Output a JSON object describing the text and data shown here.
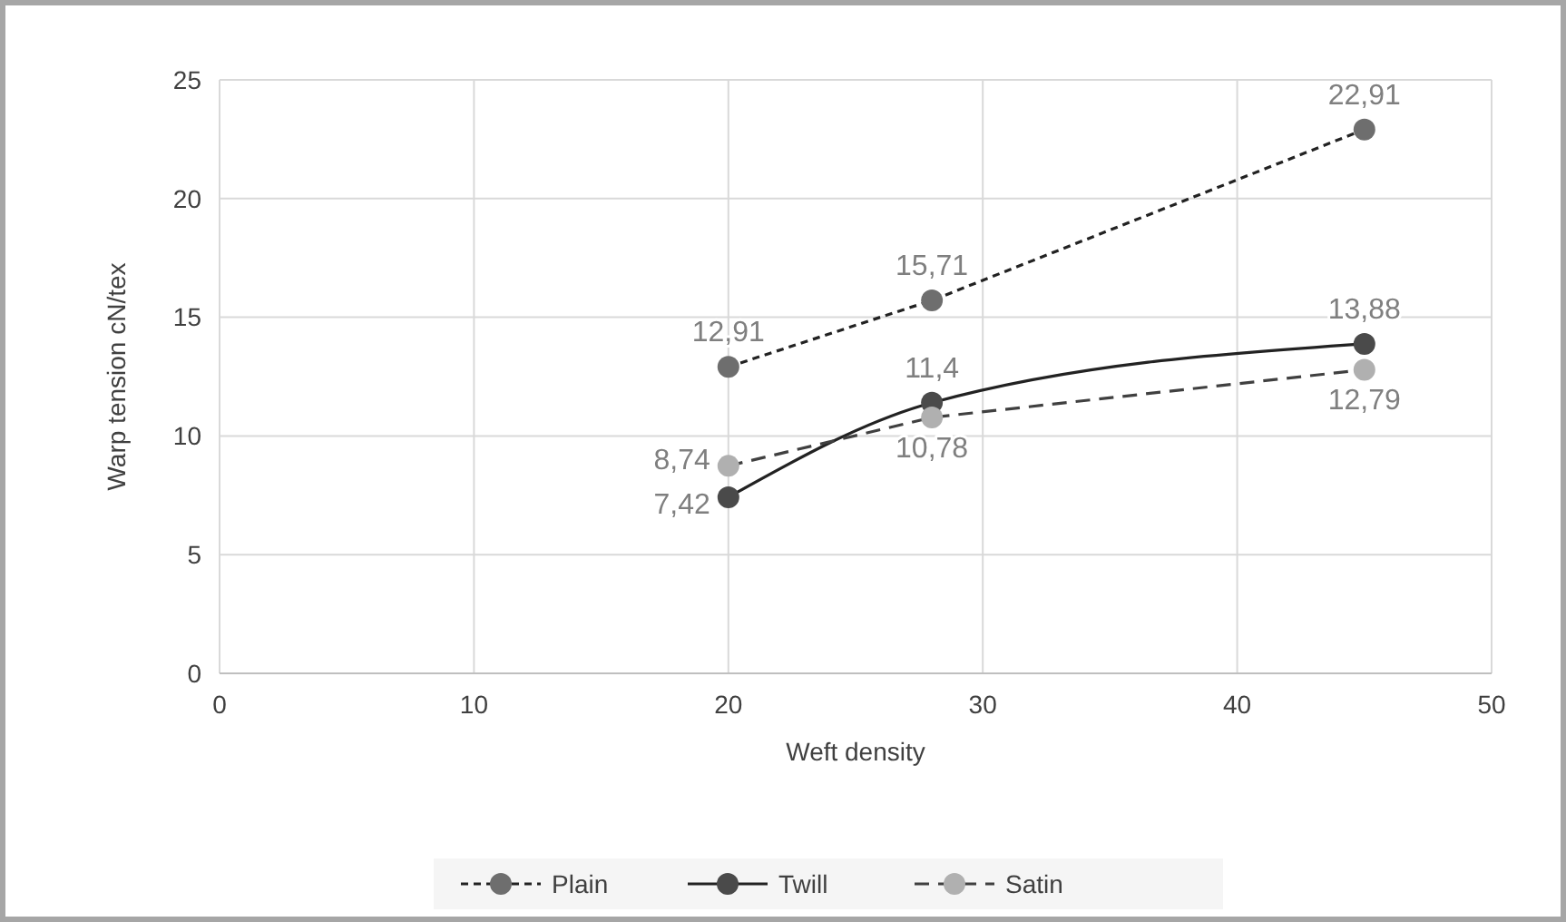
{
  "chart_data": {
    "type": "line",
    "xlabel": "Weft density",
    "ylabel": "Warp tension cN/tex",
    "x": [
      20,
      28,
      45
    ],
    "xlim": [
      0,
      50
    ],
    "xticks": [
      0,
      10,
      20,
      30,
      40,
      50
    ],
    "ylim": [
      0,
      25
    ],
    "yticks": [
      0,
      5,
      10,
      15,
      20,
      25
    ],
    "grid": true,
    "legend": "bottom",
    "marker": "circle",
    "series": [
      {
        "name": "Plain",
        "color": "#6e6e6e",
        "values": [
          12.91,
          15.71,
          22.91
        ],
        "value_labels": [
          "12,91",
          "15,71",
          "22,91"
        ],
        "line_style": "dashed"
      },
      {
        "name": "Twill",
        "color": "#4a4a4a",
        "values": [
          7.42,
          11.4,
          13.88
        ],
        "value_labels": [
          "7,42",
          "11,4",
          "13,88"
        ],
        "line_style": "solid"
      },
      {
        "name": "Satin",
        "color": "#b0b0b0",
        "values": [
          8.74,
          10.78,
          12.79
        ],
        "value_labels": [
          "8,74",
          "10,78",
          "12,79"
        ],
        "line_style": "dashed"
      }
    ]
  }
}
